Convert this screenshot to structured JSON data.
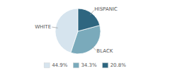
{
  "chart_data": {
    "type": "pie",
    "categories": [
      "WHITE",
      "BLACK",
      "HISPANIC"
    ],
    "values": [
      44.9,
      34.3,
      20.8
    ],
    "value_labels": [
      "44.9%",
      "34.3%",
      "20.8%"
    ],
    "colors": [
      "#d6e4ee",
      "#7aaabb",
      "#2e6680"
    ],
    "legend": "bottom"
  }
}
